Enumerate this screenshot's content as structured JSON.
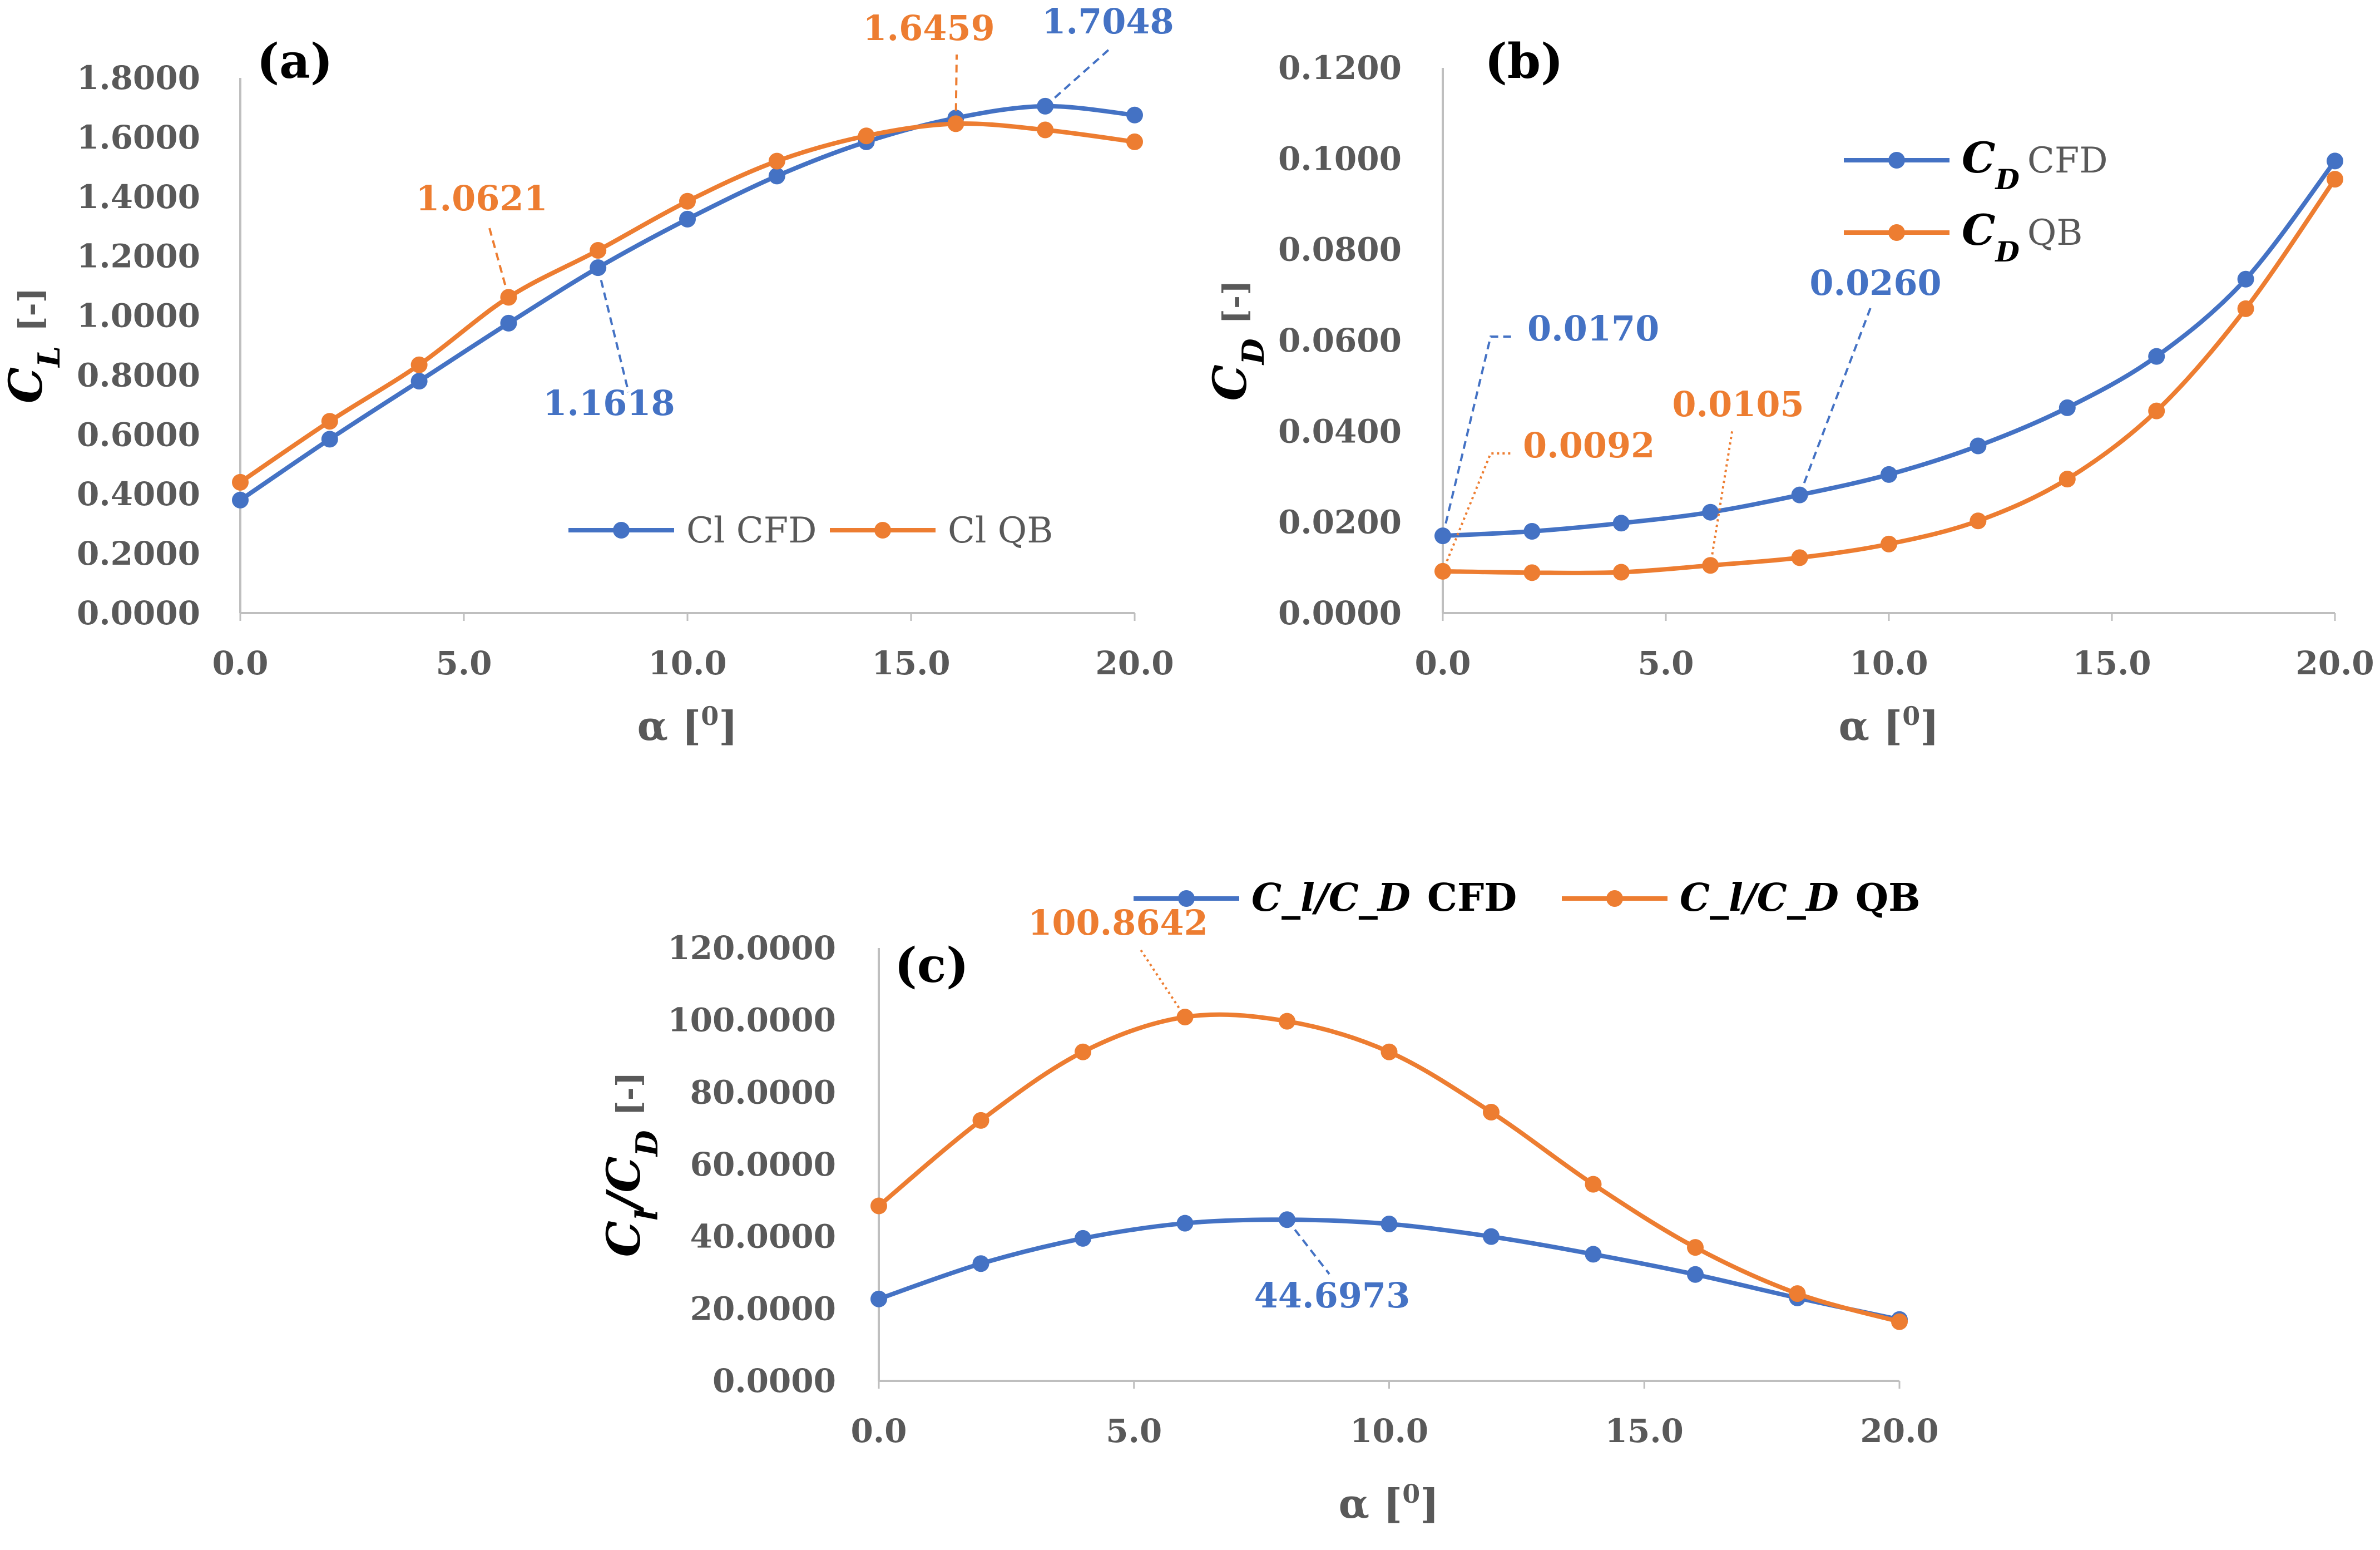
{
  "colors": {
    "cfd": "#4472C4",
    "qb": "#ED7D31",
    "axis": "#BFBFBF",
    "text": "#595959"
  },
  "chart_data": [
    {
      "type": "line",
      "panel_label": "(a)",
      "xlabel_main": "α [",
      "xlabel_sup": "0",
      "xlabel_close": "]",
      "ylabel_main": "C",
      "ylabel_sub": "L",
      "ylabel_unit": "[-]",
      "xlim": [
        0,
        20
      ],
      "ylim": [
        0,
        1.8
      ],
      "x_ticks": [
        0,
        5,
        10,
        15,
        20
      ],
      "x_tick_labels": [
        "0.0",
        "5.0",
        "10.0",
        "15.0",
        "20.0"
      ],
      "y_ticks": [
        0,
        0.2,
        0.4,
        0.6,
        0.8,
        1.0,
        1.2,
        1.4,
        1.6,
        1.8
      ],
      "y_tick_labels": [
        "0.0000",
        "0.2000",
        "0.4000",
        "0.6000",
        "0.8000",
        "1.0000",
        "1.2000",
        "1.4000",
        "1.6000",
        "1.8000"
      ],
      "grid": false,
      "legend_position": "bottom-right",
      "x": [
        0,
        2,
        4,
        6,
        8,
        10,
        12,
        14,
        16,
        18,
        20
      ],
      "series": [
        {
          "name": "Cl CFD",
          "color_key": "cfd",
          "values": [
            0.38,
            0.585,
            0.78,
            0.975,
            1.1618,
            1.325,
            1.47,
            1.585,
            1.665,
            1.7048,
            1.675
          ]
        },
        {
          "name": "Cl QB",
          "color_key": "qb",
          "values": [
            0.44,
            0.645,
            0.835,
            1.0621,
            1.22,
            1.385,
            1.52,
            1.605,
            1.6459,
            1.625,
            1.585
          ]
        }
      ],
      "annotations": [
        {
          "text": "1.6459",
          "series": 1,
          "point": 8
        },
        {
          "text": "1.7048",
          "series": 0,
          "point": 9
        },
        {
          "text": "1.0621",
          "series": 1,
          "point": 3
        },
        {
          "text": "1.1618",
          "series": 0,
          "point": 4
        }
      ]
    },
    {
      "type": "line",
      "panel_label": "(b)",
      "xlabel_main": "α [",
      "xlabel_sup": "0",
      "xlabel_close": "]",
      "ylabel_main": "C",
      "ylabel_sub": "D",
      "ylabel_unit": "[-]",
      "xlim": [
        0,
        20
      ],
      "ylim": [
        0,
        0.12
      ],
      "x_ticks": [
        0,
        5,
        10,
        15,
        20
      ],
      "x_tick_labels": [
        "0.0",
        "5.0",
        "10.0",
        "15.0",
        "20.0"
      ],
      "y_ticks": [
        0,
        0.02,
        0.04,
        0.06,
        0.08,
        0.1,
        0.12
      ],
      "y_tick_labels": [
        "0.0000",
        "0.0200",
        "0.0400",
        "0.0600",
        "0.0800",
        "0.1000",
        "0.1200"
      ],
      "grid": false,
      "legend_position": "top-right",
      "x": [
        0,
        2,
        4,
        6,
        8,
        10,
        12,
        14,
        16,
        18,
        20
      ],
      "series": [
        {
          "name": "CFD",
          "name_prefix_main": "C",
          "name_prefix_sub": "D",
          "color_key": "cfd",
          "values": [
            0.017,
            0.018,
            0.0198,
            0.0222,
            0.026,
            0.0305,
            0.0368,
            0.0452,
            0.0565,
            0.0735,
            0.0995
          ]
        },
        {
          "name": "QB",
          "name_prefix_main": "C",
          "name_prefix_sub": "D",
          "color_key": "qb",
          "values": [
            0.0092,
            0.0089,
            0.009,
            0.0105,
            0.0122,
            0.0152,
            0.0203,
            0.0295,
            0.0445,
            0.067,
            0.0955
          ]
        }
      ],
      "annotations": [
        {
          "text": "0.0170",
          "series": 0,
          "point": 0
        },
        {
          "text": "0.0092",
          "series": 1,
          "point": 0
        },
        {
          "text": "0.0260",
          "series": 0,
          "point": 4
        },
        {
          "text": "0.0105",
          "series": 1,
          "point": 3
        }
      ]
    },
    {
      "type": "line",
      "panel_label": "(c)",
      "xlabel_main": "α [",
      "xlabel_sup": "0",
      "xlabel_close": "]",
      "ylabel_main": "C",
      "ylabel_sub": "l",
      "ylabel_main2": "/C",
      "ylabel_sub2": "D",
      "ylabel_unit": "[-]",
      "xlim": [
        0,
        20
      ],
      "ylim": [
        0,
        120
      ],
      "x_ticks": [
        0,
        5,
        10,
        15,
        20
      ],
      "x_tick_labels": [
        "0.0",
        "5.0",
        "10.0",
        "15.0",
        "20.0"
      ],
      "y_ticks": [
        0,
        20,
        40,
        60,
        80,
        100,
        120
      ],
      "y_tick_labels": [
        "0.0000",
        "20.0000",
        "40.0000",
        "60.0000",
        "80.0000",
        "100.0000",
        "120.0000"
      ],
      "grid": false,
      "legend_position": "top",
      "x": [
        0,
        2,
        4,
        6,
        8,
        10,
        12,
        14,
        16,
        18,
        20
      ],
      "series": [
        {
          "name": "CFD",
          "name_prefix": "C_l/C_D",
          "color_key": "cfd",
          "values": [
            22.7,
            32.5,
            39.5,
            43.7,
            44.6973,
            43.5,
            40.0,
            35.1,
            29.5,
            23.0,
            17.0
          ]
        },
        {
          "name": "QB",
          "name_prefix": "C_l/C_D",
          "color_key": "qb",
          "values": [
            48.5,
            72.2,
            91.2,
            100.8642,
            99.7,
            91.2,
            74.5,
            54.5,
            37.0,
            24.2,
            16.4
          ]
        }
      ],
      "annotations": [
        {
          "text": "100.8642",
          "series": 1,
          "point": 3
        },
        {
          "text": "44.6973",
          "series": 0,
          "point": 4
        }
      ]
    }
  ]
}
